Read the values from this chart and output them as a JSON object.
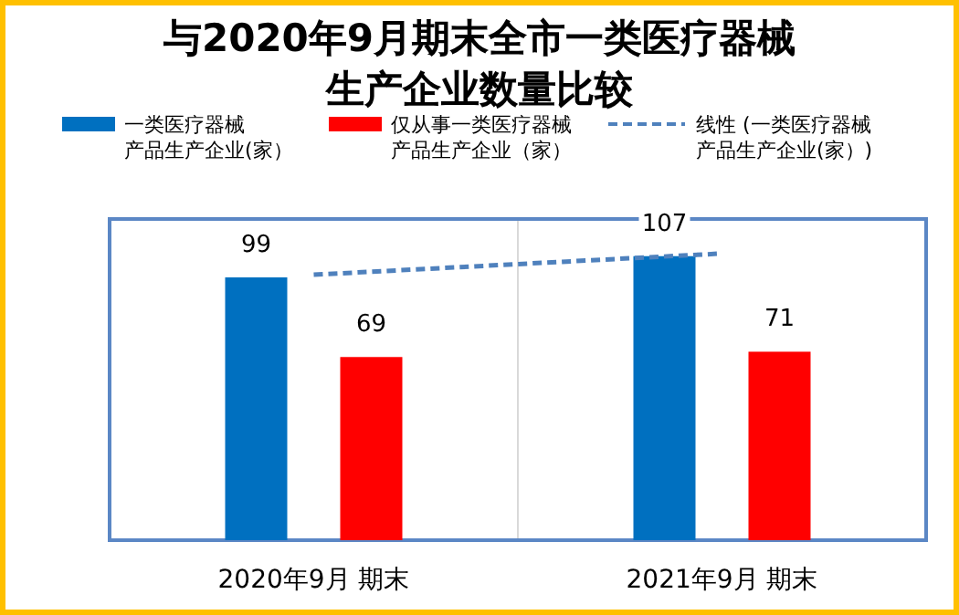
{
  "chart_data": {
    "type": "bar",
    "title": "与2020年9月期末全市一类医疗器械生产企业数量比较",
    "categories": [
      "2020年9月 期末",
      "2021年9月 期末"
    ],
    "series": [
      {
        "name": "一类医疗器械产品生产企业(家）",
        "color": "#0070c0",
        "values": [
          99,
          107
        ],
        "value_labels": [
          "99",
          "107"
        ]
      },
      {
        "name": "仅从事一类医疗器械产品生产企业（家）",
        "color": "#ff0000",
        "values": [
          69,
          71
        ],
        "value_labels": [
          "69",
          "71"
        ]
      },
      {
        "name": "线性 (一类医疗器械产品生产企业(家）)",
        "type": "line",
        "color": "#4f81bd",
        "line_style": "dashed",
        "values": [
          100,
          108
        ]
      }
    ],
    "ylim": [
      0,
      121
    ],
    "legend": "top"
  }
}
